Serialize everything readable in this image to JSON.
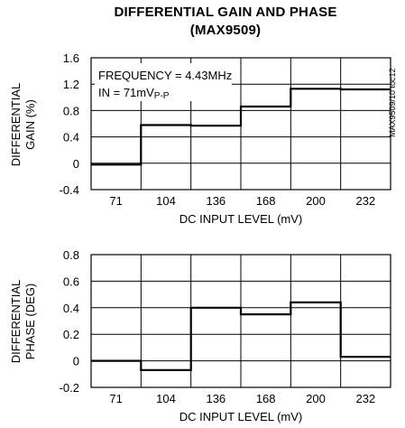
{
  "title": {
    "line1": "DIFFERENTIAL GAIN AND PHASE",
    "line2": "(MAX9509)"
  },
  "part_number": "MAX9509/10 toc12",
  "chart_data": [
    {
      "type": "line",
      "step": true,
      "categories": [
        "71",
        "104",
        "136",
        "168",
        "200",
        "232"
      ],
      "xlabel": "DC INPUT LEVEL (mV)",
      "ylabel": [
        "DIFFERENTIAL",
        "GAIN (%)"
      ],
      "ylim": [
        -0.4,
        1.6
      ],
      "yticks": [
        "-0.4",
        "0",
        "0.4",
        "0.8",
        "1.2",
        "1.6"
      ],
      "grid": true,
      "annotations": [
        "FREQUENCY = 4.43MHz",
        "IN = 71mV",
        "P-P"
      ],
      "values": [
        -0.02,
        0.58,
        0.57,
        0.86,
        1.13,
        1.12
      ]
    },
    {
      "type": "line",
      "step": true,
      "categories": [
        "71",
        "104",
        "136",
        "168",
        "200",
        "232"
      ],
      "xlabel": "DC INPUT LEVEL (mV)",
      "ylabel": [
        "DIFFERENTIAL",
        "PHASE (DEG)"
      ],
      "ylim": [
        -0.2,
        0.8
      ],
      "yticks": [
        "-0.2",
        "0",
        "0.2",
        "0.4",
        "0.6",
        "0.8"
      ],
      "grid": true,
      "annotations": [],
      "values": [
        0.0,
        -0.07,
        0.4,
        0.35,
        0.44,
        0.03
      ]
    }
  ]
}
